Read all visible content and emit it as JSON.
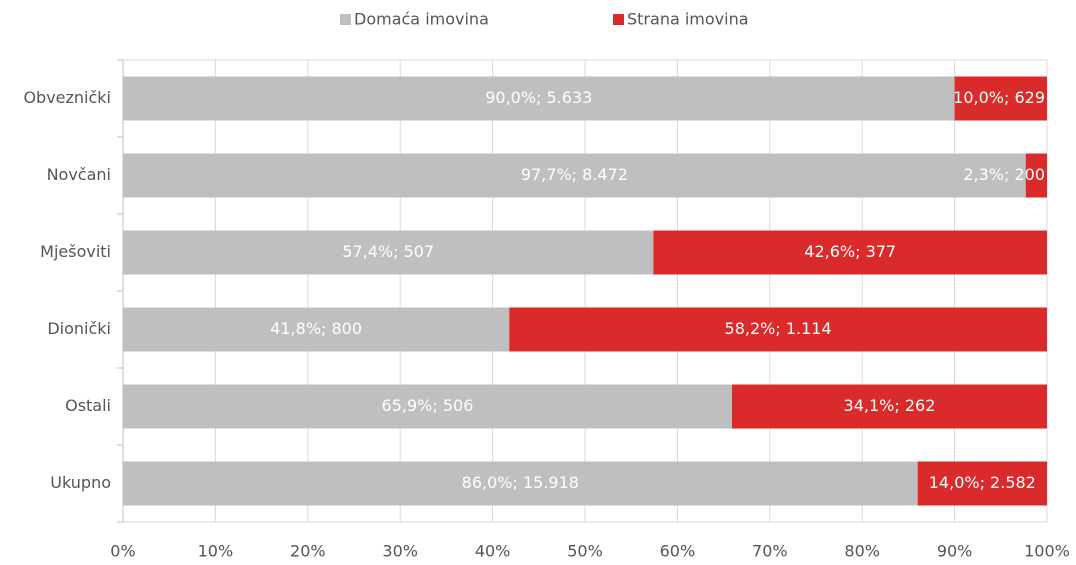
{
  "chart_data": {
    "type": "stacked_bar_horizontal",
    "categories": [
      "Obveznički",
      "Novčani",
      "Mješoviti",
      "Dionički",
      "Ostali",
      "Ukupno"
    ],
    "series": [
      {
        "name": "Domaća imovina",
        "color": "#bfbfbf",
        "values": [
          90.0,
          97.7,
          57.4,
          41.8,
          65.9,
          86.0
        ],
        "value_labels": [
          "90,0%; 5.633",
          "97,7%; 8.472",
          "57,4%; 507",
          "41,8%; 800",
          "65,9%; 506",
          "86,0%; 15.918"
        ]
      },
      {
        "name": "Strana imovina",
        "color": "#d92b2b",
        "values": [
          10.0,
          2.3,
          42.6,
          58.2,
          34.1,
          14.0
        ],
        "value_labels": [
          "10,0%; 629",
          "2,3%; 200",
          "42,6%; 377",
          "58,2%; 1.114",
          "34,1%; 262",
          "14,0%; 2.582"
        ]
      }
    ],
    "xlim": [
      0,
      100
    ],
    "xticks": [
      {
        "value": 0,
        "label": "0%"
      },
      {
        "value": 10,
        "label": "10%"
      },
      {
        "value": 20,
        "label": "20%"
      },
      {
        "value": 30,
        "label": "30%"
      },
      {
        "value": 40,
        "label": "40%"
      },
      {
        "value": 50,
        "label": "50%"
      },
      {
        "value": 60,
        "label": "60%"
      },
      {
        "value": 70,
        "label": "70%"
      },
      {
        "value": 80,
        "label": "80%"
      },
      {
        "value": 90,
        "label": "90%"
      },
      {
        "value": 100,
        "label": "100%"
      }
    ],
    "grid": true,
    "legend": "top"
  }
}
